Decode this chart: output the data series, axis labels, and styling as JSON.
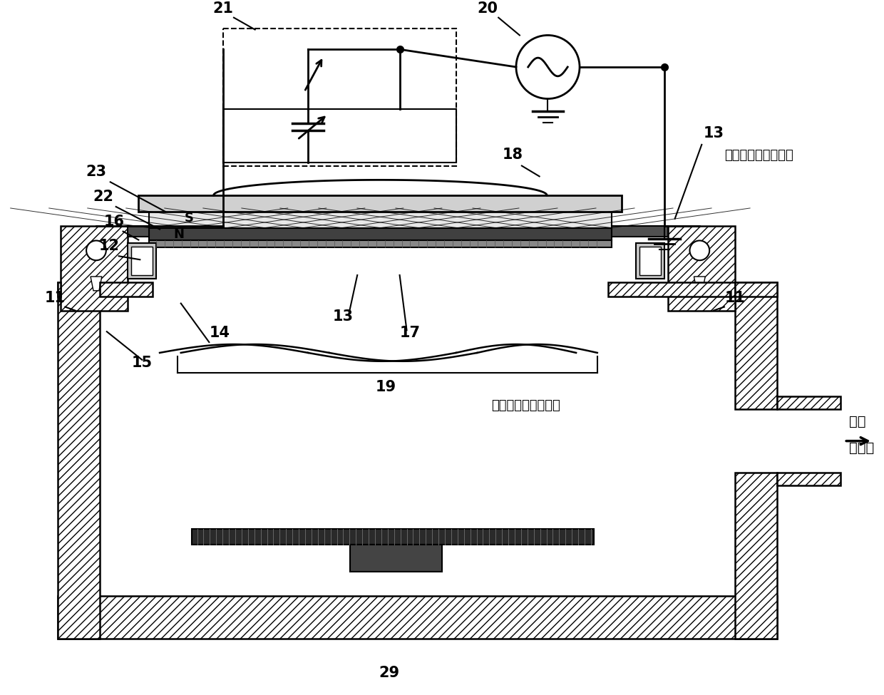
{
  "bg_color": "#ffffff",
  "label_21": "21",
  "label_20": "20",
  "label_23": "23",
  "label_22": "22",
  "label_18": "18",
  "label_13a": "13",
  "label_13b": "13",
  "label_16": "16",
  "label_12": "12",
  "label_11a": "11",
  "label_11b": "11",
  "label_14": "14",
  "label_15": "15",
  "label_17": "17",
  "label_19": "19",
  "label_29": "29",
  "text_outside": "（真空容器外部側）",
  "text_inside": "（真空容器内部側）",
  "text_pump_line1": "通往",
  "text_pump_line2": "真空泵",
  "label_S": "S",
  "label_N": "N"
}
